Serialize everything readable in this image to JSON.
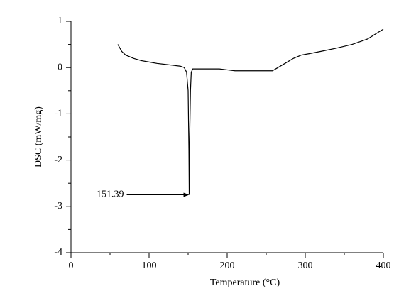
{
  "chart_data": {
    "type": "line",
    "xlabel": "Temperature (°C)",
    "ylabel": "DSC (mW/mg)",
    "x": [
      60,
      65,
      70,
      80,
      90,
      100,
      110,
      120,
      130,
      140,
      145,
      148,
      150,
      151,
      151.39,
      152,
      153,
      154,
      156,
      170,
      190,
      200,
      210,
      230,
      250,
      258,
      265,
      275,
      285,
      295,
      305,
      320,
      340,
      360,
      380,
      395,
      400
    ],
    "values": [
      0.5,
      0.35,
      0.27,
      0.2,
      0.15,
      0.12,
      0.09,
      0.07,
      0.05,
      0.03,
      0.0,
      -0.1,
      -0.5,
      -1.8,
      -2.75,
      -1.5,
      -0.5,
      -0.1,
      -0.03,
      -0.03,
      -0.03,
      -0.05,
      -0.07,
      -0.07,
      -0.07,
      -0.07,
      0.0,
      0.1,
      0.2,
      0.27,
      0.3,
      0.35,
      0.42,
      0.5,
      0.62,
      0.78,
      0.83
    ],
    "color": "#000000",
    "xlim": [
      0,
      400
    ],
    "xticks": [
      0,
      100,
      200,
      300,
      400
    ],
    "ylim": [
      -4,
      1
    ],
    "yticks": [
      -4,
      -3,
      -2,
      -1,
      0,
      1
    ],
    "annotation": {
      "label": "151.39",
      "x": 151.39,
      "y": -2.75
    }
  }
}
